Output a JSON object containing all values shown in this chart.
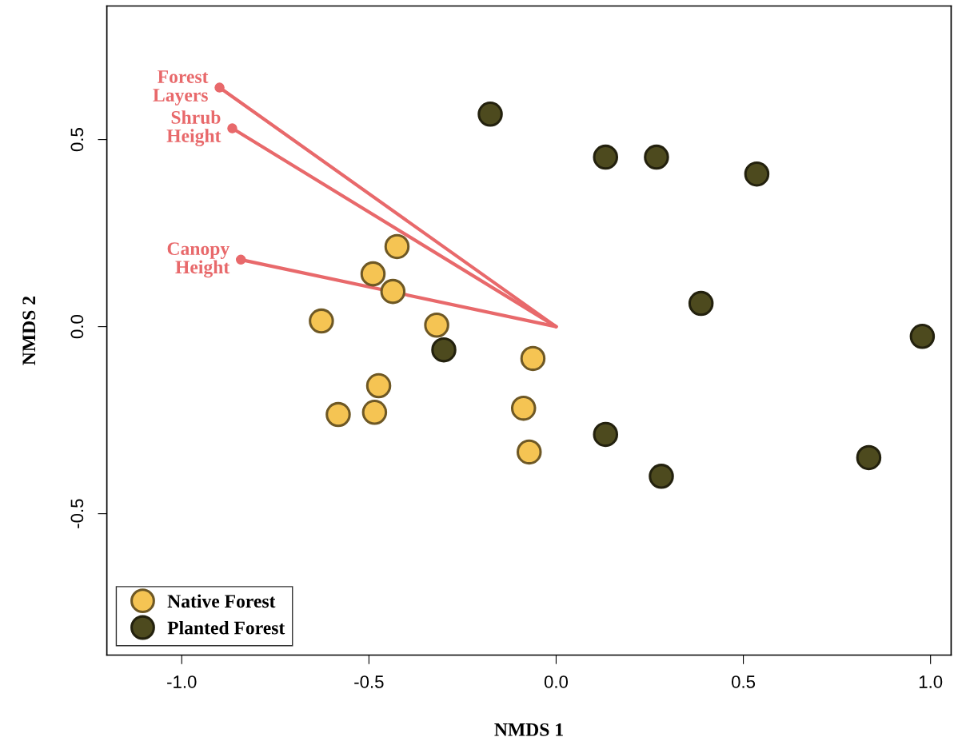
{
  "chart_data": {
    "type": "scatter",
    "xlabel": "NMDS 1",
    "ylabel": "NMDS 2",
    "xlim": [
      -1.2,
      1.055
    ],
    "ylim": [
      -0.878,
      0.857
    ],
    "xticks": [
      {
        "value": -1.0,
        "label": "-1.0"
      },
      {
        "value": -0.5,
        "label": "-0.5"
      },
      {
        "value": 0,
        "label": "0.0"
      },
      {
        "value": 0.5,
        "label": "0.5"
      },
      {
        "value": 1.0,
        "label": "1.0"
      }
    ],
    "yticks": [
      {
        "value": -0.5,
        "label": "-0.5"
      },
      {
        "value": 0,
        "label": "0.0"
      },
      {
        "value": 0.5,
        "label": "0.5"
      }
    ],
    "grid": false,
    "legend": "bottom left",
    "marker": "circle",
    "series": [
      {
        "name": "Native Forest",
        "color": "#f5c453",
        "x": [
          -0.425,
          -0.489,
          -0.436,
          -0.627,
          -0.319,
          -0.062,
          -0.474,
          -0.582,
          -0.485,
          -0.087,
          -0.072
        ],
        "values": [
          0.214,
          0.141,
          0.094,
          0.015,
          0.004,
          -0.085,
          -0.158,
          -0.235,
          -0.229,
          -0.218,
          -0.335
        ]
      },
      {
        "name": "Planted Forest",
        "color": "#4d4a1e",
        "x": [
          -0.176,
          0.132,
          0.268,
          0.536,
          0.387,
          0.978,
          -0.3,
          0.132,
          0.281,
          0.835
        ],
        "values": [
          0.568,
          0.453,
          0.453,
          0.408,
          0.062,
          -0.026,
          -0.062,
          -0.288,
          -0.4,
          -0.35
        ]
      },
      {
        "name": "Forest Layers",
        "type": "line",
        "color": "#e8696b",
        "x": [
          0,
          -0.899
        ],
        "values": [
          0,
          0.639
        ]
      },
      {
        "name": "Shrub Height",
        "type": "line",
        "color": "#e8696b",
        "x": [
          0,
          -0.865
        ],
        "values": [
          0,
          0.53
        ]
      },
      {
        "name": "Canopy Height",
        "type": "line",
        "color": "#e8696b",
        "x": [
          0,
          -0.842
        ],
        "values": [
          0,
          0.179
        ]
      }
    ]
  }
}
